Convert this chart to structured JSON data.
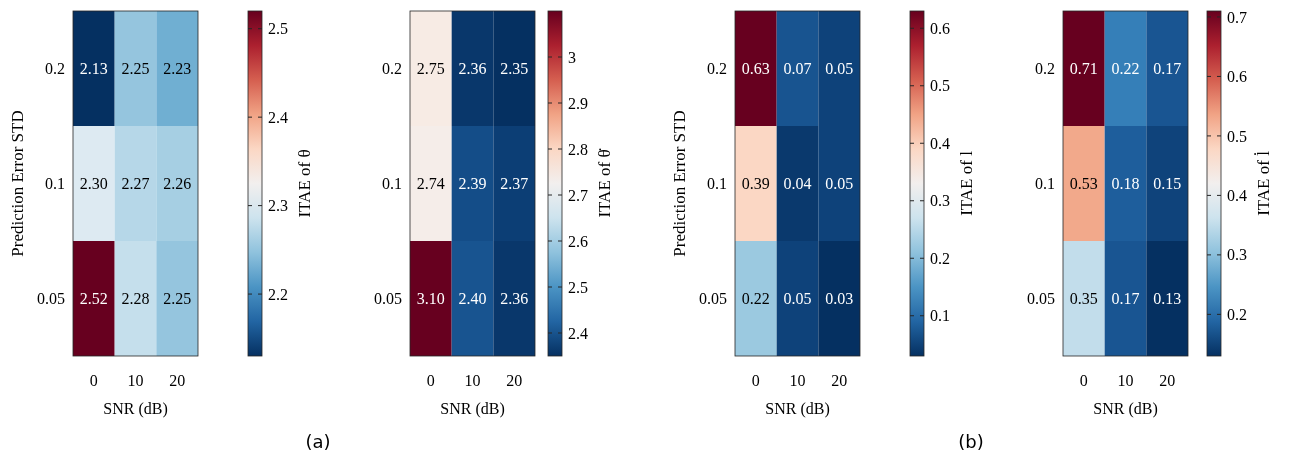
{
  "chart_data": [
    {
      "type": "heatmap",
      "xlabel": "SNR (dB)",
      "ylabel": "Prediction Error STD",
      "clabel": "ITAE of θ",
      "categories": [
        "0",
        "10",
        "20"
      ],
      "y_categories": [
        "0.2",
        "0.1",
        "0.05"
      ],
      "cells": [
        [
          2.13,
          2.25,
          2.23
        ],
        [
          2.3,
          2.27,
          2.26
        ],
        [
          2.52,
          2.28,
          2.25
        ]
      ],
      "cell_labels": [
        [
          "2.13",
          "2.25",
          "2.23"
        ],
        [
          "2.30",
          "2.27",
          "2.26"
        ],
        [
          "2.52",
          "2.28",
          "2.25"
        ]
      ],
      "clim": [
        2.13,
        2.52
      ],
      "cticks": [
        2.2,
        2.3,
        2.4,
        2.5
      ]
    },
    {
      "type": "heatmap",
      "xlabel": "SNR (dB)",
      "clabel": "ITAE of θ̇",
      "annotations": [
        "(a)"
      ],
      "categories": [
        "0",
        "10",
        "20"
      ],
      "y_categories": [
        "0.2",
        "0.1",
        "0.05"
      ],
      "cells": [
        [
          2.75,
          2.36,
          2.35
        ],
        [
          2.74,
          2.39,
          2.37
        ],
        [
          3.1,
          2.4,
          2.36
        ]
      ],
      "cell_labels": [
        [
          "2.75",
          "2.36",
          "2.35"
        ],
        [
          "2.74",
          "2.39",
          "2.37"
        ],
        [
          "3.10",
          "2.40",
          "2.36"
        ]
      ],
      "clim": [
        2.35,
        3.1
      ],
      "cticks": [
        2.4,
        2.5,
        2.6,
        2.7,
        2.8,
        2.9,
        3
      ]
    },
    {
      "type": "heatmap",
      "xlabel": "SNR (dB)",
      "ylabel": "Prediction Error STD",
      "clabel": "ITAE of l",
      "categories": [
        "0",
        "10",
        "20"
      ],
      "y_categories": [
        "0.2",
        "0.1",
        "0.05"
      ],
      "cells": [
        [
          0.63,
          0.07,
          0.05
        ],
        [
          0.39,
          0.04,
          0.05
        ],
        [
          0.22,
          0.05,
          0.03
        ]
      ],
      "cell_labels": [
        [
          "0.63",
          "0.07",
          "0.05"
        ],
        [
          "0.39",
          "0.04",
          "0.05"
        ],
        [
          "0.22",
          "0.05",
          "0.03"
        ]
      ],
      "clim": [
        0.03,
        0.63
      ],
      "cticks": [
        0.1,
        0.2,
        0.3,
        0.4,
        0.5,
        0.6
      ]
    },
    {
      "type": "heatmap",
      "xlabel": "SNR (dB)",
      "clabel": "ITAE of l̇",
      "annotations": [
        "(b)"
      ],
      "categories": [
        "0",
        "10",
        "20"
      ],
      "y_categories": [
        "0.2",
        "0.1",
        "0.05"
      ],
      "cells": [
        [
          0.71,
          0.22,
          0.17
        ],
        [
          0.53,
          0.18,
          0.15
        ],
        [
          0.35,
          0.17,
          0.13
        ]
      ],
      "cell_labels": [
        [
          "0.71",
          "0.22",
          "0.17"
        ],
        [
          "0.53",
          "0.18",
          "0.15"
        ],
        [
          "0.35",
          "0.17",
          "0.13"
        ]
      ],
      "clim": [
        0.13,
        0.71
      ],
      "cticks": [
        0.2,
        0.3,
        0.4,
        0.5,
        0.6,
        0.7
      ]
    }
  ]
}
